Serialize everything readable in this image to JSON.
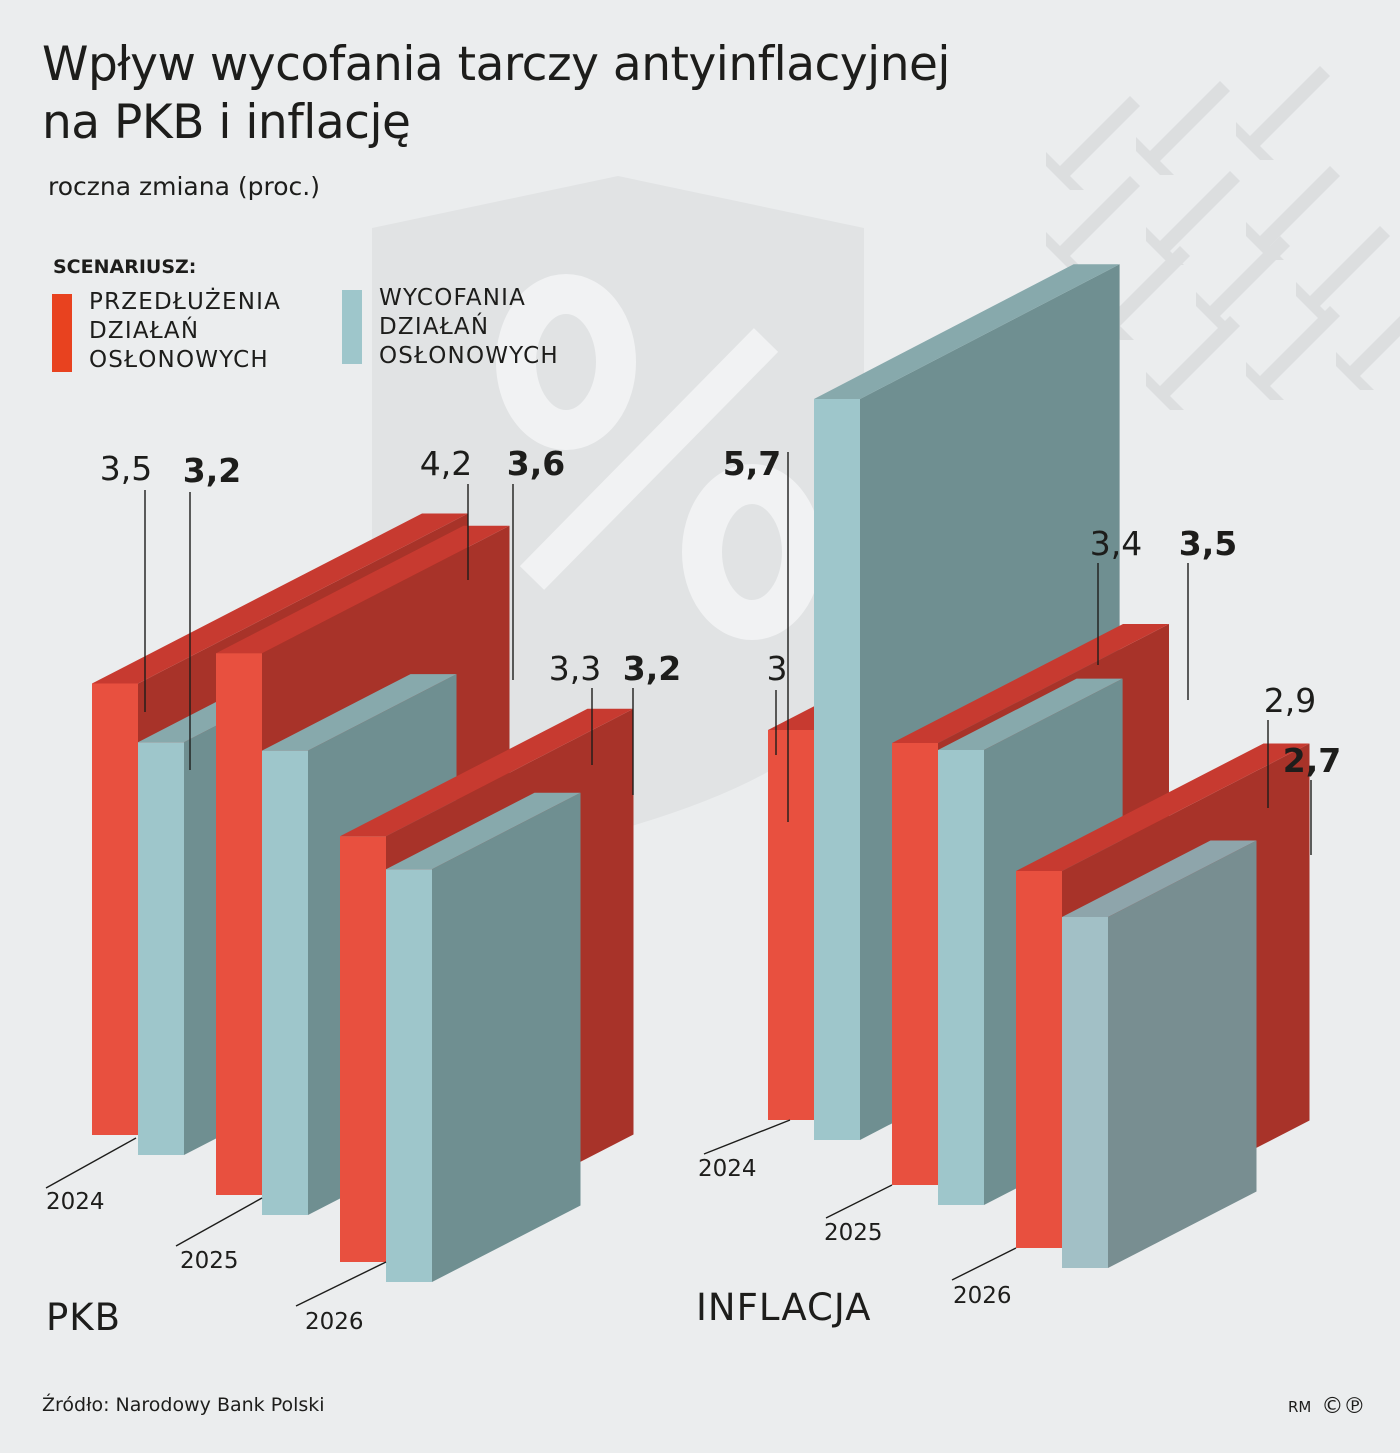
{
  "title": "Wpływ wycofania tarczy antyinflacyjnej\nna PKB i inflację",
  "subtitle": "roczna zmiana (proc.)",
  "legend": {
    "heading": "SCENARIUSZ:",
    "items": [
      {
        "label": "PRZEDŁUŻENIA\nDZIAŁAŃ\nOSŁONOWYCH",
        "color": "#e8503f"
      },
      {
        "label": "WYCOFANIA\nDZIAŁAŃ\nOSŁONOWYCH",
        "color": "#9ec6cb"
      }
    ]
  },
  "source": "Źródło: Narodowy Bank Polski",
  "credit": "RM",
  "chart_data": [
    {
      "type": "bar",
      "title": "PKB",
      "categories": [
        "2024",
        "2025",
        "2026"
      ],
      "series": [
        {
          "name": "PRZEDŁUŻENIA DZIAŁAŃ OSŁONOWYCH",
          "values": [
            3.5,
            4.2,
            3.3
          ]
        },
        {
          "name": "WYCOFANIA DZIAŁAŃ OSŁONOWYCH",
          "values": [
            3.2,
            3.6,
            3.2
          ]
        }
      ],
      "data_labels": [
        [
          "3,5",
          "4,2",
          "3,3"
        ],
        [
          "3,2",
          "3,6",
          "3,2"
        ]
      ]
    },
    {
      "type": "bar",
      "title": "INFLACJA",
      "categories": [
        "2024",
        "2025",
        "2026"
      ],
      "series": [
        {
          "name": "PRZEDŁUŻENIA DZIAŁAŃ OSŁONOWYCH",
          "values": [
            3.0,
            3.4,
            2.9
          ]
        },
        {
          "name": "WYCOFANIA DZIAŁAŃ OSŁONOWYCH",
          "values": [
            5.7,
            3.5,
            2.7
          ]
        }
      ],
      "data_labels": [
        [
          "3",
          "3,4",
          "2,9"
        ],
        [
          "5,7",
          "3,5",
          "2,7"
        ]
      ]
    }
  ]
}
